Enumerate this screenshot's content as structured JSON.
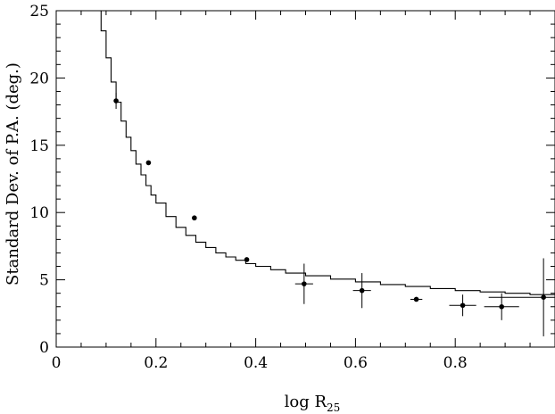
{
  "chart_data": {
    "type": "scatter",
    "xlabel": "log R",
    "xlabel_subscript": "25",
    "ylabel": "Standard Dev. of P.A. (deg.)",
    "xlim": [
      0,
      1.0
    ],
    "ylim": [
      0,
      25
    ],
    "x_ticks": [
      0,
      0.2,
      0.4,
      0.6,
      0.8
    ],
    "x_tick_labels": [
      "0",
      "0.2",
      "0.4",
      "0.6",
      "0.8"
    ],
    "y_ticks": [
      0,
      5,
      10,
      15,
      20,
      25
    ],
    "y_tick_labels": [
      "0",
      "5",
      "10",
      "15",
      "20",
      "25"
    ],
    "grid": false,
    "series": [
      {
        "kind": "points",
        "color": "#000000",
        "points": [
          {
            "x": 0.12,
            "y": 18.3,
            "xerr": 0.0,
            "yerr": 0.6
          },
          {
            "x": 0.185,
            "y": 13.7,
            "xerr": 0.0,
            "yerr": 0.0
          },
          {
            "x": 0.277,
            "y": 9.6,
            "xerr": 0.0,
            "yerr": 0.0
          },
          {
            "x": 0.382,
            "y": 6.5,
            "xerr": 0.0,
            "yerr": 0.0
          },
          {
            "x": 0.497,
            "y": 4.7,
            "xerr": 0.018,
            "yerr": 1.5
          },
          {
            "x": 0.613,
            "y": 4.2,
            "xerr": 0.018,
            "yerr": 1.3
          },
          {
            "x": 0.722,
            "y": 3.55,
            "xerr": 0.012,
            "yerr": 0.15
          },
          {
            "x": 0.815,
            "y": 3.1,
            "xerr": 0.027,
            "yerr": 0.8
          },
          {
            "x": 0.893,
            "y": 3.0,
            "xerr": 0.035,
            "yerr": 1.0
          },
          {
            "x": 0.977,
            "y": 3.7,
            "xerr": 0.11,
            "yerr": 2.9
          }
        ]
      },
      {
        "kind": "model-curve",
        "color": "#000000",
        "points": [
          [
            0.082,
            25.0
          ],
          [
            0.09,
            23.5
          ],
          [
            0.1,
            21.5
          ],
          [
            0.11,
            19.7
          ],
          [
            0.12,
            18.2
          ],
          [
            0.13,
            16.8
          ],
          [
            0.14,
            15.6
          ],
          [
            0.15,
            14.6
          ],
          [
            0.16,
            13.6
          ],
          [
            0.17,
            12.8
          ],
          [
            0.18,
            12.0
          ],
          [
            0.19,
            11.3
          ],
          [
            0.2,
            10.7
          ],
          [
            0.22,
            9.7
          ],
          [
            0.24,
            8.9
          ],
          [
            0.26,
            8.3
          ],
          [
            0.28,
            7.8
          ],
          [
            0.3,
            7.4
          ],
          [
            0.32,
            7.0
          ],
          [
            0.34,
            6.7
          ],
          [
            0.36,
            6.45
          ],
          [
            0.38,
            6.2
          ],
          [
            0.4,
            6.0
          ],
          [
            0.43,
            5.75
          ],
          [
            0.46,
            5.5
          ],
          [
            0.5,
            5.3
          ],
          [
            0.55,
            5.05
          ],
          [
            0.6,
            4.85
          ],
          [
            0.65,
            4.65
          ],
          [
            0.7,
            4.5
          ],
          [
            0.75,
            4.35
          ],
          [
            0.8,
            4.2
          ],
          [
            0.85,
            4.1
          ],
          [
            0.9,
            4.0
          ],
          [
            0.95,
            3.9
          ],
          [
            1.0,
            3.85
          ]
        ]
      }
    ]
  }
}
